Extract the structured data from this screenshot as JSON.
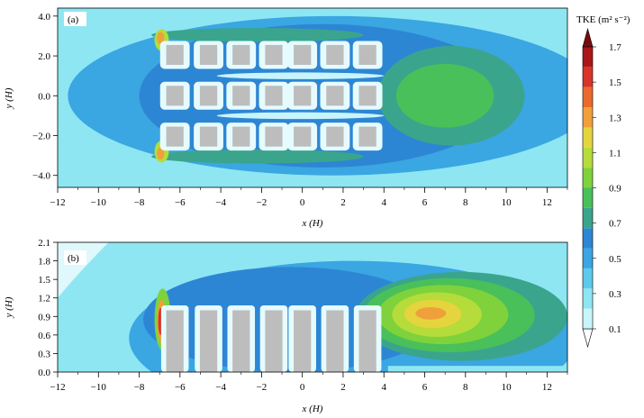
{
  "chart_data": [
    {
      "type": "heatmap",
      "panel_label": "(a)",
      "view": "plan",
      "xlabel": "x (H)",
      "ylabel": "y (H)",
      "xlim": [
        -12,
        13
      ],
      "ylim": [
        -4.6,
        4.4
      ],
      "x_ticks": [
        -12,
        -10,
        -8,
        -6,
        -4,
        -2,
        0,
        2,
        4,
        6,
        8,
        10,
        12
      ],
      "y_ticks": [
        4.0,
        2.0,
        0.0,
        -2.0,
        -4.0
      ],
      "y_tick_labels": [
        "4.0",
        "2.0",
        "0.0",
        "-2.0",
        "-4.0"
      ],
      "building_columns_x": [
        -6.25,
        -4.6,
        -3.0,
        -1.4,
        0.0,
        1.6,
        3.2
      ],
      "building_rows_y": [
        2.05,
        0.0,
        -2.05
      ],
      "building_width": 0.85,
      "building_depth": 1.0,
      "features": [
        {
          "type": "hotspot",
          "x": -6.9,
          "y": 2.8,
          "tke": 1.2
        },
        {
          "type": "hotspot",
          "x": -6.9,
          "y": -2.8,
          "tke": 1.2
        },
        {
          "type": "wake_max",
          "x": 6.8,
          "y": 0.0,
          "tke": 0.85
        }
      ]
    },
    {
      "type": "heatmap",
      "panel_label": "(b)",
      "view": "side",
      "xlabel": "x (H)",
      "ylabel": "y (H)",
      "xlim": [
        -12,
        13
      ],
      "ylim": [
        0.0,
        2.1
      ],
      "x_ticks": [
        -12,
        -10,
        -8,
        -6,
        -4,
        -2,
        0,
        2,
        4,
        6,
        8,
        10,
        12
      ],
      "y_ticks": [
        0.0,
        0.3,
        0.6,
        0.9,
        1.2,
        1.5,
        1.8,
        2.1
      ],
      "y_tick_labels": [
        "0.0",
        "0.3",
        "0.6",
        "0.9",
        "1.2",
        "1.5",
        "1.8",
        "2.1"
      ],
      "building_columns_x": [
        -6.25,
        -4.6,
        -3.0,
        -1.4,
        0.0,
        1.6,
        3.2
      ],
      "building_width": 0.85,
      "building_height": 1.0,
      "features": [
        {
          "type": "hotspot",
          "x": -6.9,
          "y": 0.85,
          "tke": 1.7
        },
        {
          "type": "wake_max",
          "x": 6.3,
          "y": 0.93,
          "tke": 1.3
        }
      ]
    }
  ],
  "colorbar": {
    "title": "TKE (m² s⁻²)",
    "min": 0.1,
    "max": 1.7,
    "tick_values": [
      1.7,
      1.5,
      1.3,
      1.1,
      0.9,
      0.7,
      0.5,
      0.3,
      0.1
    ],
    "tick_labels": [
      "1.7",
      "1.5",
      "1.3",
      "1.1",
      "0.9",
      "0.7",
      "0.5",
      "0.3",
      "0.1"
    ],
    "colors": [
      "#ffffff",
      "#c8f4fb",
      "#8ee6f2",
      "#5ccaec",
      "#3aa6e2",
      "#2d86d4",
      "#3aa58c",
      "#49c05a",
      "#7fd23c",
      "#b5dc3a",
      "#e5d43e",
      "#f0a03a",
      "#ea6a2e",
      "#d8342a",
      "#aa1718",
      "#7b0a10"
    ]
  }
}
